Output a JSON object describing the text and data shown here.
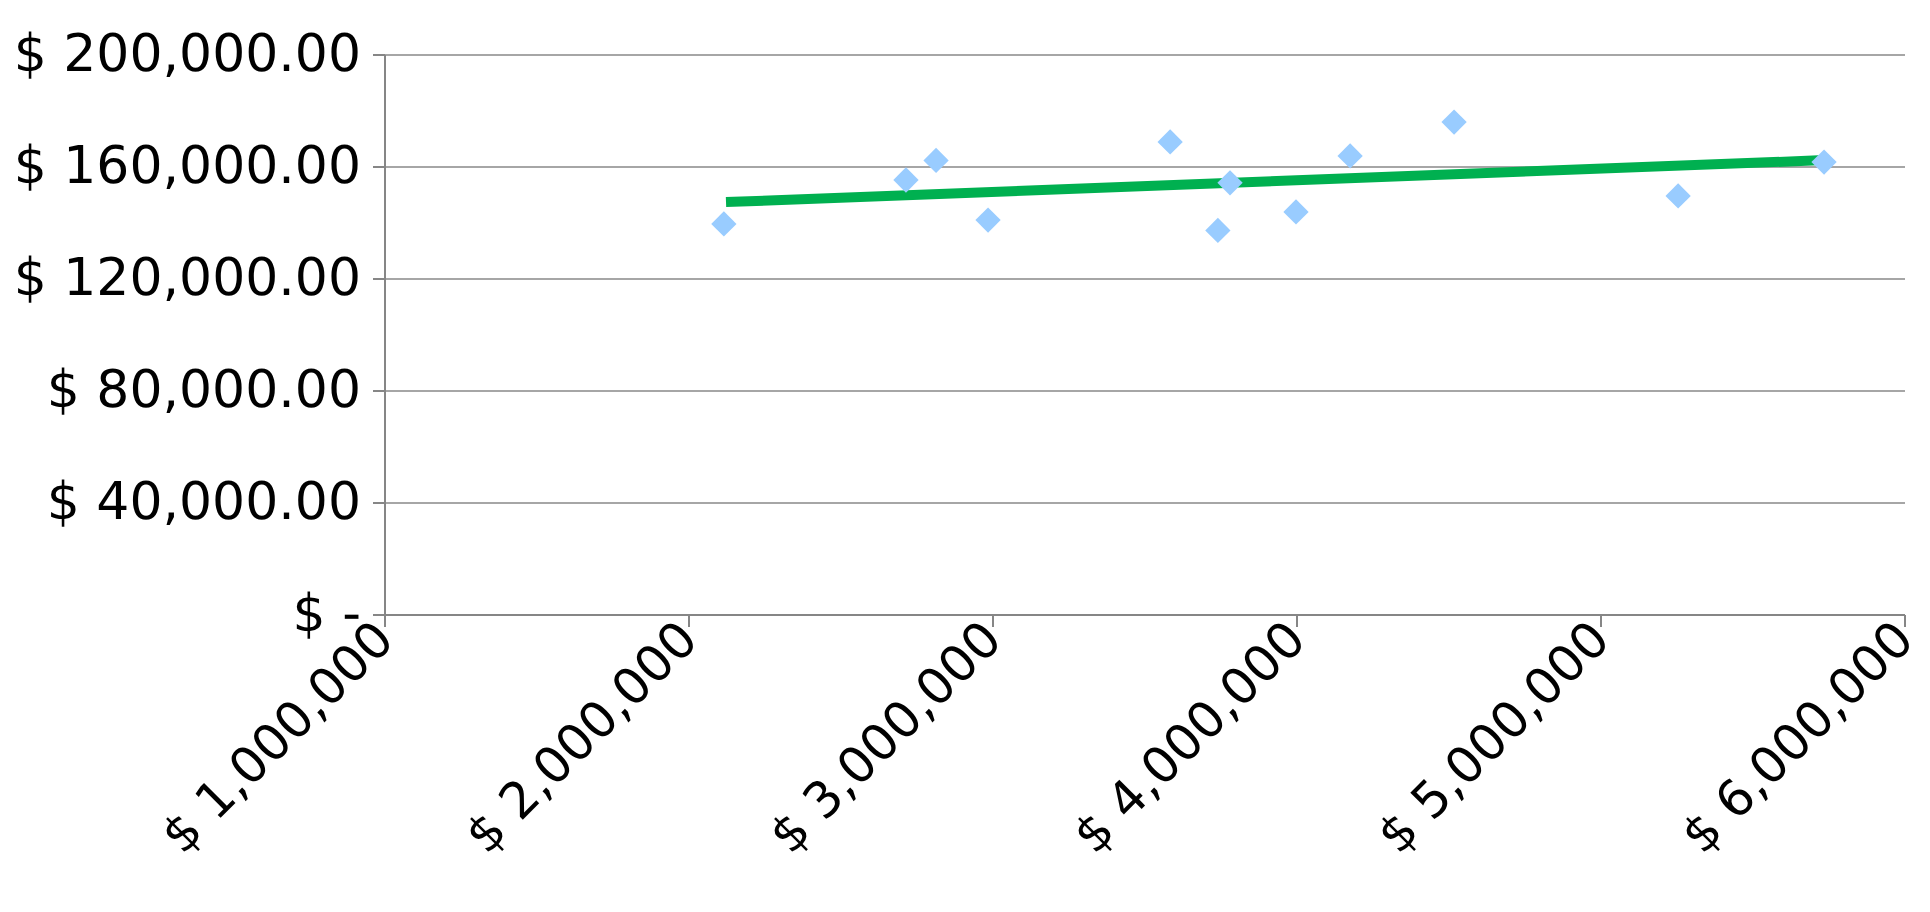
{
  "chart_data": {
    "type": "scatter",
    "x": [
      2118000,
      2717000,
      2816000,
      2987000,
      3586000,
      3743000,
      3783000,
      4000000,
      4178000,
      4520000,
      5257000,
      5737000
    ],
    "values": [
      139300,
      155000,
      162000,
      140700,
      168600,
      137000,
      154000,
      143600,
      163600,
      175700,
      149300,
      161400
    ],
    "color": "#99ccff",
    "marker": "diamond",
    "series": [
      {
        "type": "line",
        "marker": "none",
        "x": [
          2125000,
          5737000
        ],
        "values": [
          147100,
          162100
        ],
        "color": "#00b050"
      }
    ],
    "xlim": [
      1000000,
      6000000
    ],
    "xticks": [
      {
        "value": 1000000,
        "label": "$ 1,000,000"
      },
      {
        "value": 2000000,
        "label": "$ 2,000,000"
      },
      {
        "value": 3000000,
        "label": "$ 3,000,000"
      },
      {
        "value": 4000000,
        "label": "$ 4,000,000"
      },
      {
        "value": 5000000,
        "label": "$ 5,000,000"
      },
      {
        "value": 6000000,
        "label": "$ 6,000,000"
      }
    ],
    "ylim": [
      0,
      200000
    ],
    "yticks": [
      {
        "value": 0,
        "label": "$ -"
      },
      {
        "value": 40000,
        "label": "$ 40,000.00"
      },
      {
        "value": 80000,
        "label": "$ 80,000.00"
      },
      {
        "value": 120000,
        "label": "$ 120,000.00"
      },
      {
        "value": 160000,
        "label": "$ 160,000.00"
      },
      {
        "value": 200000,
        "label": "$ 200,000.00"
      }
    ],
    "grid": "y"
  }
}
